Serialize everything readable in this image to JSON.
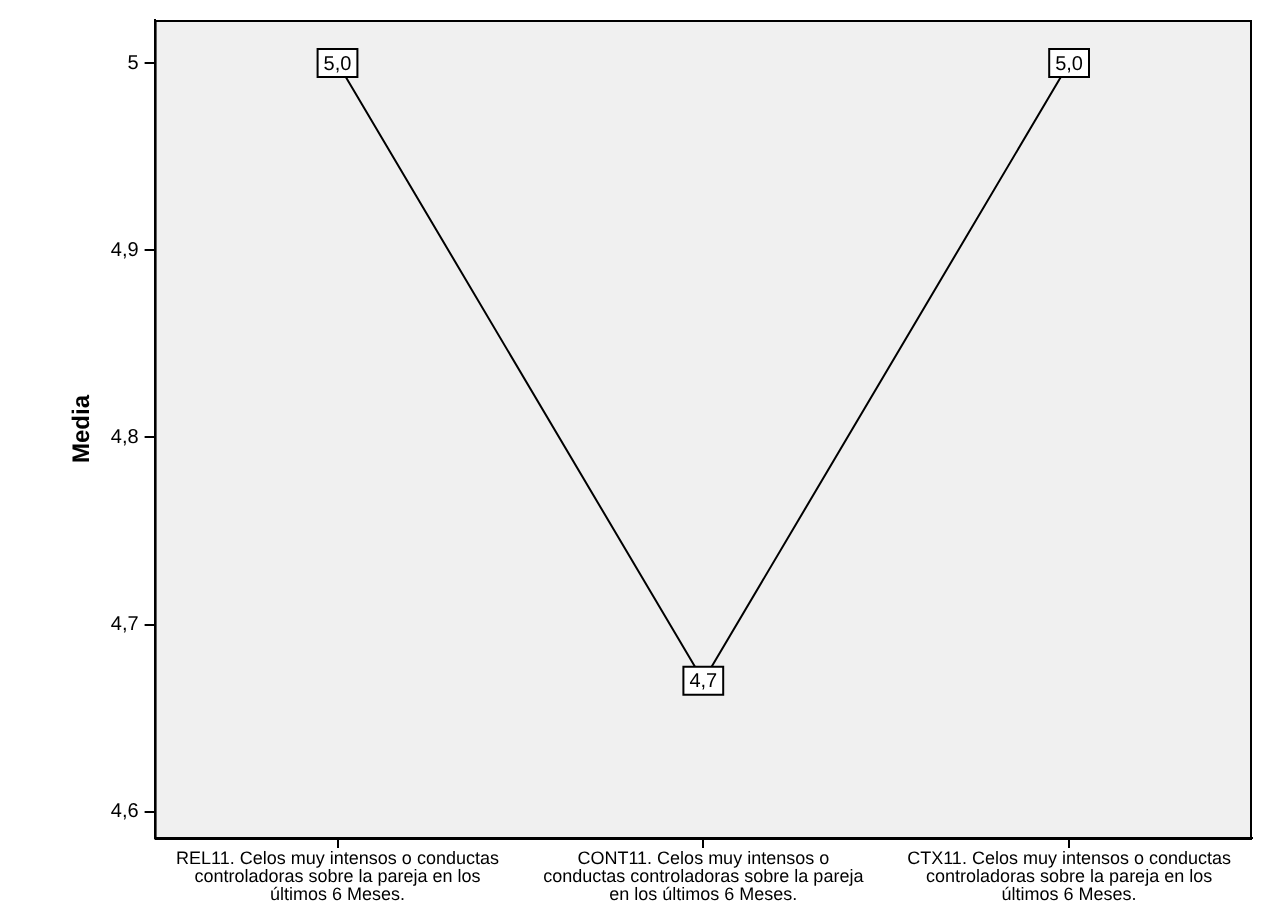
{
  "chart_data": {
    "type": "line",
    "ylabel": "Media",
    "categories": [
      "REL11. Celos muy intensos o conductas controladoras sobre la pareja en los últimos 6 Meses.",
      "CONT11. Celos muy intensos o conductas controladoras sobre la pareja en los últimos 6 Meses.",
      "CTX11. Celos muy intensos o conductas controladoras sobre la pareja en los últimos 6 Meses."
    ],
    "values": [
      5.0,
      4.67,
      5.0
    ],
    "value_labels": [
      "5,0",
      "4,7",
      "5,0"
    ],
    "color": "#000000",
    "marker": "square",
    "ylim": [
      4.586,
      5.023
    ],
    "yticks": [
      {
        "value": 4.6,
        "label": "4,6"
      },
      {
        "value": 4.7,
        "label": "4,7"
      },
      {
        "value": 4.8,
        "label": "4,8"
      },
      {
        "value": 4.9,
        "label": "4,9"
      },
      {
        "value": 5,
        "label": "5"
      }
    ]
  }
}
